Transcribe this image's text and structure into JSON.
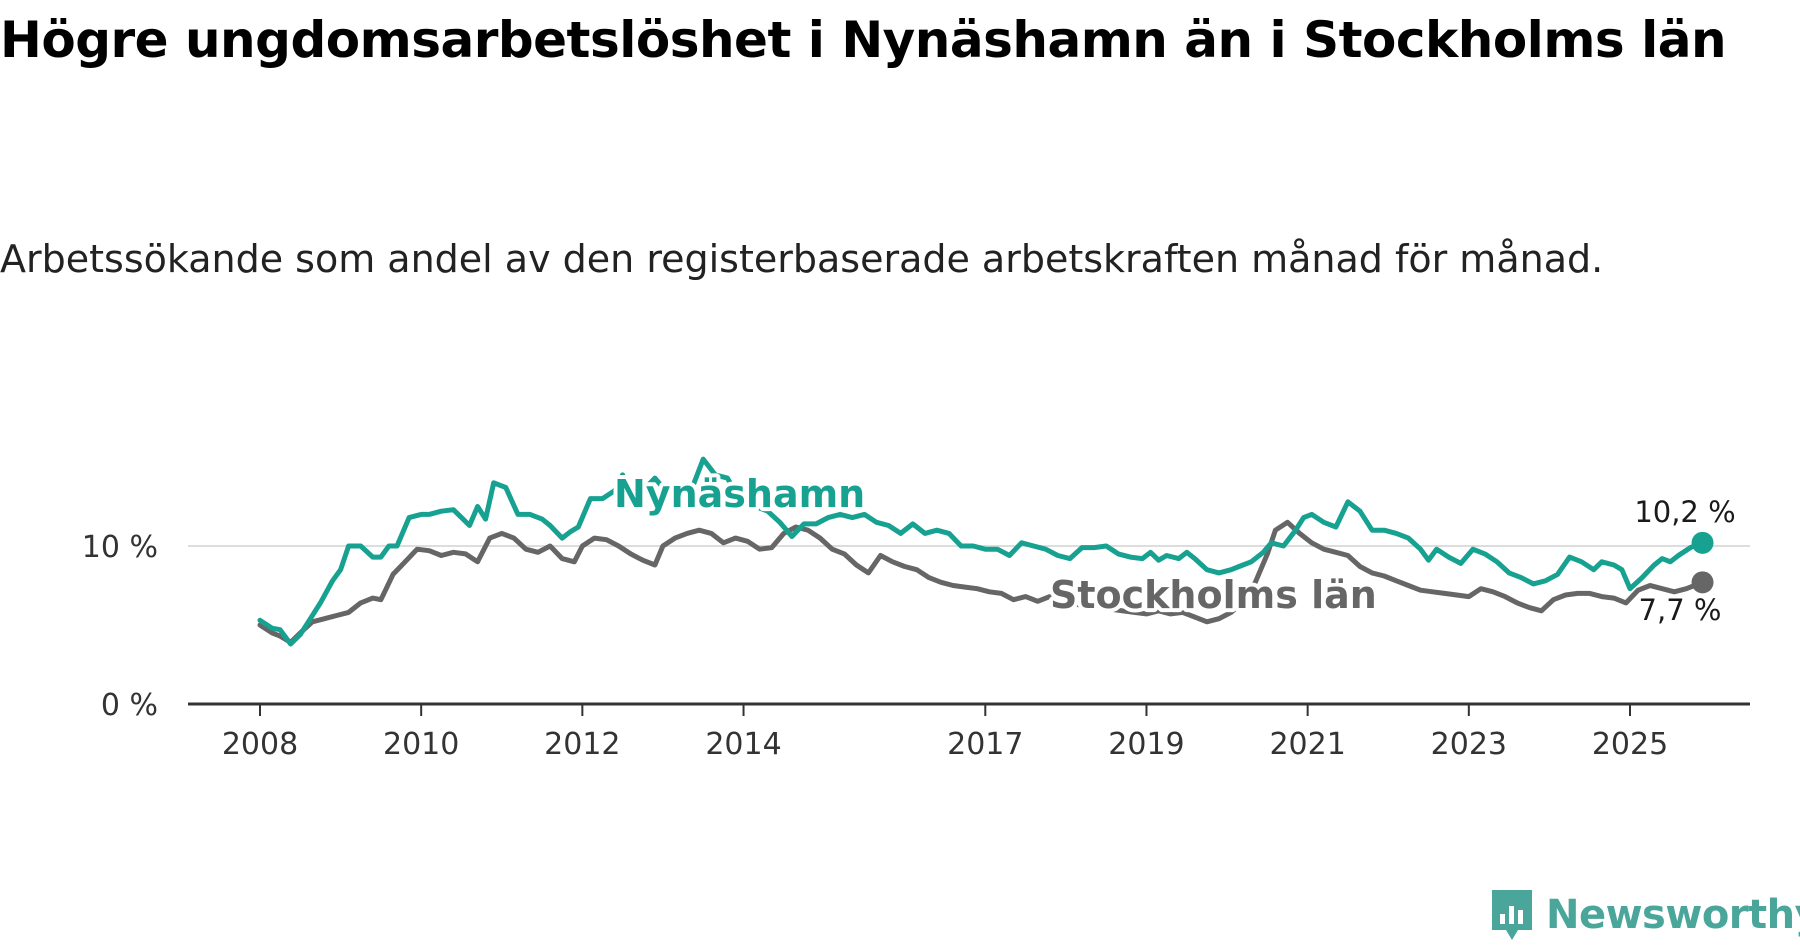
{
  "title": "Högre ungdomsarbetslöshet i Nynäshamn än i Stockholms län",
  "subtitle": "Arbetssökande som andel av den registerbaserade arbetskraften månad för månad.",
  "brand": "Newsworthy",
  "colors": {
    "nynashamn": "#17a190",
    "stockholm": "#666666",
    "axis": "#333333",
    "grid": "#dddddd",
    "brand": "#4aa69a"
  },
  "chart_data": {
    "type": "line",
    "xlim": [
      2008,
      2026
    ],
    "ylim": [
      0,
      14
    ],
    "yticks": [
      {
        "value": 0,
        "label": "0 %"
      },
      {
        "value": 10,
        "label": "10 %"
      }
    ],
    "xticks": [
      {
        "value": 2008,
        "label": "2008"
      },
      {
        "value": 2010,
        "label": "2010"
      },
      {
        "value": 2012,
        "label": "2012"
      },
      {
        "value": 2014,
        "label": "2014"
      },
      {
        "value": 2017,
        "label": "2017"
      },
      {
        "value": 2019,
        "label": "2019"
      },
      {
        "value": 2021,
        "label": "2021"
      },
      {
        "value": 2023,
        "label": "2023"
      },
      {
        "value": 2025,
        "label": "2025"
      }
    ],
    "grid": "horizontal",
    "series": [
      {
        "name": "Nynäshamn",
        "label": "Nynäshamn",
        "end_label": "10,2 %",
        "points": [
          [
            2008.0,
            5.3
          ],
          [
            2008.15,
            4.8
          ],
          [
            2008.25,
            4.7
          ],
          [
            2008.38,
            3.8
          ],
          [
            2008.5,
            4.4
          ],
          [
            2008.6,
            5.2
          ],
          [
            2008.75,
            6.4
          ],
          [
            2008.9,
            7.8
          ],
          [
            2009.0,
            8.5
          ],
          [
            2009.1,
            10.0
          ],
          [
            2009.25,
            10.0
          ],
          [
            2009.4,
            9.3
          ],
          [
            2009.5,
            9.3
          ],
          [
            2009.6,
            10.0
          ],
          [
            2009.7,
            10.0
          ],
          [
            2009.85,
            11.8
          ],
          [
            2010.0,
            12.0
          ],
          [
            2010.1,
            12.0
          ],
          [
            2010.25,
            12.2
          ],
          [
            2010.4,
            12.3
          ],
          [
            2010.5,
            11.8
          ],
          [
            2010.6,
            11.3
          ],
          [
            2010.7,
            12.5
          ],
          [
            2010.8,
            11.7
          ],
          [
            2010.9,
            14.0
          ],
          [
            2011.05,
            13.7
          ],
          [
            2011.2,
            12.0
          ],
          [
            2011.35,
            12.0
          ],
          [
            2011.5,
            11.7
          ],
          [
            2011.6,
            11.3
          ],
          [
            2011.75,
            10.5
          ],
          [
            2011.85,
            10.9
          ],
          [
            2011.95,
            11.2
          ],
          [
            2012.1,
            13.0
          ],
          [
            2012.25,
            13.0
          ],
          [
            2012.4,
            13.5
          ],
          [
            2012.5,
            14.5
          ],
          [
            2012.6,
            13.4
          ],
          [
            2012.75,
            13.5
          ],
          [
            2012.9,
            14.3
          ],
          [
            2013.05,
            13.4
          ],
          [
            2013.2,
            12.9
          ],
          [
            2013.35,
            13.5
          ],
          [
            2013.5,
            15.5
          ],
          [
            2013.65,
            14.5
          ],
          [
            2013.8,
            14.3
          ],
          [
            2013.95,
            13.0
          ],
          [
            2014.15,
            12.5
          ],
          [
            2014.3,
            12.2
          ],
          [
            2014.45,
            11.5
          ],
          [
            2014.6,
            10.6
          ],
          [
            2014.75,
            11.4
          ],
          [
            2014.9,
            11.4
          ],
          [
            2015.05,
            11.8
          ],
          [
            2015.2,
            12.0
          ],
          [
            2015.35,
            11.8
          ],
          [
            2015.5,
            12.0
          ],
          [
            2015.65,
            11.5
          ],
          [
            2015.8,
            11.3
          ],
          [
            2015.95,
            10.8
          ],
          [
            2016.1,
            11.4
          ],
          [
            2016.25,
            10.8
          ],
          [
            2016.4,
            11.0
          ],
          [
            2016.55,
            10.8
          ],
          [
            2016.7,
            10.0
          ],
          [
            2016.85,
            10.0
          ],
          [
            2017.0,
            9.8
          ],
          [
            2017.15,
            9.8
          ],
          [
            2017.3,
            9.4
          ],
          [
            2017.45,
            10.2
          ],
          [
            2017.6,
            10.0
          ],
          [
            2017.75,
            9.8
          ],
          [
            2017.9,
            9.4
          ],
          [
            2018.05,
            9.2
          ],
          [
            2018.2,
            9.9
          ],
          [
            2018.35,
            9.9
          ],
          [
            2018.5,
            10.0
          ],
          [
            2018.65,
            9.5
          ],
          [
            2018.8,
            9.3
          ],
          [
            2018.95,
            9.2
          ],
          [
            2019.05,
            9.6
          ],
          [
            2019.15,
            9.1
          ],
          [
            2019.25,
            9.4
          ],
          [
            2019.4,
            9.2
          ],
          [
            2019.5,
            9.6
          ],
          [
            2019.6,
            9.2
          ],
          [
            2019.75,
            8.5
          ],
          [
            2019.9,
            8.3
          ],
          [
            2020.05,
            8.5
          ],
          [
            2020.15,
            8.7
          ],
          [
            2020.3,
            9.0
          ],
          [
            2020.45,
            9.6
          ],
          [
            2020.55,
            10.2
          ],
          [
            2020.7,
            10.0
          ],
          [
            2020.85,
            11.0
          ],
          [
            2020.95,
            11.8
          ],
          [
            2021.05,
            12.0
          ],
          [
            2021.2,
            11.5
          ],
          [
            2021.35,
            11.2
          ],
          [
            2021.5,
            12.8
          ],
          [
            2021.65,
            12.2
          ],
          [
            2021.8,
            11.0
          ],
          [
            2021.95,
            11.0
          ],
          [
            2022.1,
            10.8
          ],
          [
            2022.25,
            10.5
          ],
          [
            2022.4,
            9.8
          ],
          [
            2022.5,
            9.1
          ],
          [
            2022.6,
            9.8
          ],
          [
            2022.75,
            9.3
          ],
          [
            2022.9,
            8.9
          ],
          [
            2023.05,
            9.8
          ],
          [
            2023.2,
            9.5
          ],
          [
            2023.35,
            9.0
          ],
          [
            2023.5,
            8.3
          ],
          [
            2023.65,
            8.0
          ],
          [
            2023.8,
            7.6
          ],
          [
            2023.95,
            7.8
          ],
          [
            2024.1,
            8.2
          ],
          [
            2024.25,
            9.3
          ],
          [
            2024.4,
            9.0
          ],
          [
            2024.55,
            8.5
          ],
          [
            2024.65,
            9.0
          ],
          [
            2024.8,
            8.8
          ],
          [
            2024.9,
            8.5
          ],
          [
            2025.0,
            7.3
          ],
          [
            2025.15,
            8.0
          ],
          [
            2025.3,
            8.8
          ],
          [
            2025.4,
            9.2
          ],
          [
            2025.5,
            9.0
          ],
          [
            2025.6,
            9.4
          ],
          [
            2025.75,
            9.9
          ],
          [
            2025.9,
            10.2
          ]
        ]
      },
      {
        "name": "Stockholms län",
        "label": "Stockholms län",
        "end_label": "7,7 %",
        "points": [
          [
            2008.0,
            5.0
          ],
          [
            2008.15,
            4.5
          ],
          [
            2008.25,
            4.3
          ],
          [
            2008.38,
            3.9
          ],
          [
            2008.5,
            4.5
          ],
          [
            2008.65,
            5.2
          ],
          [
            2008.8,
            5.4
          ],
          [
            2008.95,
            5.6
          ],
          [
            2009.1,
            5.8
          ],
          [
            2009.25,
            6.4
          ],
          [
            2009.4,
            6.7
          ],
          [
            2009.5,
            6.6
          ],
          [
            2009.65,
            8.2
          ],
          [
            2009.8,
            9.0
          ],
          [
            2009.95,
            9.8
          ],
          [
            2010.1,
            9.7
          ],
          [
            2010.25,
            9.4
          ],
          [
            2010.4,
            9.6
          ],
          [
            2010.55,
            9.5
          ],
          [
            2010.7,
            9.0
          ],
          [
            2010.85,
            10.5
          ],
          [
            2011.0,
            10.8
          ],
          [
            2011.15,
            10.5
          ],
          [
            2011.3,
            9.8
          ],
          [
            2011.45,
            9.6
          ],
          [
            2011.6,
            10.0
          ],
          [
            2011.75,
            9.2
          ],
          [
            2011.9,
            9.0
          ],
          [
            2012.0,
            10.0
          ],
          [
            2012.15,
            10.5
          ],
          [
            2012.3,
            10.4
          ],
          [
            2012.45,
            10.0
          ],
          [
            2012.6,
            9.5
          ],
          [
            2012.75,
            9.1
          ],
          [
            2012.9,
            8.8
          ],
          [
            2013.0,
            10.0
          ],
          [
            2013.15,
            10.5
          ],
          [
            2013.3,
            10.8
          ],
          [
            2013.45,
            11.0
          ],
          [
            2013.6,
            10.8
          ],
          [
            2013.75,
            10.2
          ],
          [
            2013.9,
            10.5
          ],
          [
            2014.05,
            10.3
          ],
          [
            2014.2,
            9.8
          ],
          [
            2014.35,
            9.9
          ],
          [
            2014.5,
            10.8
          ],
          [
            2014.65,
            11.2
          ],
          [
            2014.8,
            11.0
          ],
          [
            2014.95,
            10.5
          ],
          [
            2015.1,
            9.8
          ],
          [
            2015.25,
            9.5
          ],
          [
            2015.4,
            8.8
          ],
          [
            2015.55,
            8.3
          ],
          [
            2015.7,
            9.4
          ],
          [
            2015.85,
            9.0
          ],
          [
            2016.0,
            8.7
          ],
          [
            2016.15,
            8.5
          ],
          [
            2016.3,
            8.0
          ],
          [
            2016.45,
            7.7
          ],
          [
            2016.6,
            7.5
          ],
          [
            2016.75,
            7.4
          ],
          [
            2016.9,
            7.3
          ],
          [
            2017.05,
            7.1
          ],
          [
            2017.2,
            7.0
          ],
          [
            2017.35,
            6.6
          ],
          [
            2017.5,
            6.8
          ],
          [
            2017.65,
            6.5
          ],
          [
            2017.8,
            6.8
          ],
          [
            2017.95,
            6.6
          ],
          [
            2018.1,
            6.4
          ],
          [
            2018.25,
            6.1
          ],
          [
            2018.4,
            6.2
          ],
          [
            2018.55,
            6.0
          ],
          [
            2018.7,
            5.9
          ],
          [
            2018.85,
            5.8
          ],
          [
            2019.0,
            5.7
          ],
          [
            2019.15,
            5.9
          ],
          [
            2019.3,
            5.7
          ],
          [
            2019.45,
            5.8
          ],
          [
            2019.6,
            5.5
          ],
          [
            2019.75,
            5.2
          ],
          [
            2019.9,
            5.4
          ],
          [
            2020.05,
            5.8
          ],
          [
            2020.2,
            6.5
          ],
          [
            2020.35,
            7.7
          ],
          [
            2020.5,
            9.5
          ],
          [
            2020.6,
            11.0
          ],
          [
            2020.75,
            11.5
          ],
          [
            2020.9,
            10.8
          ],
          [
            2021.05,
            10.2
          ],
          [
            2021.2,
            9.8
          ],
          [
            2021.35,
            9.6
          ],
          [
            2021.5,
            9.4
          ],
          [
            2021.65,
            8.7
          ],
          [
            2021.8,
            8.3
          ],
          [
            2021.95,
            8.1
          ],
          [
            2022.1,
            7.8
          ],
          [
            2022.25,
            7.5
          ],
          [
            2022.4,
            7.2
          ],
          [
            2022.55,
            7.1
          ],
          [
            2022.7,
            7.0
          ],
          [
            2022.85,
            6.9
          ],
          [
            2023.0,
            6.8
          ],
          [
            2023.15,
            7.3
          ],
          [
            2023.3,
            7.1
          ],
          [
            2023.45,
            6.8
          ],
          [
            2023.6,
            6.4
          ],
          [
            2023.75,
            6.1
          ],
          [
            2023.9,
            5.9
          ],
          [
            2024.05,
            6.6
          ],
          [
            2024.2,
            6.9
          ],
          [
            2024.35,
            7.0
          ],
          [
            2024.5,
            7.0
          ],
          [
            2024.65,
            6.8
          ],
          [
            2024.8,
            6.7
          ],
          [
            2024.95,
            6.4
          ],
          [
            2025.1,
            7.2
          ],
          [
            2025.25,
            7.5
          ],
          [
            2025.4,
            7.3
          ],
          [
            2025.55,
            7.1
          ],
          [
            2025.7,
            7.3
          ],
          [
            2025.9,
            7.7
          ]
        ]
      }
    ]
  }
}
